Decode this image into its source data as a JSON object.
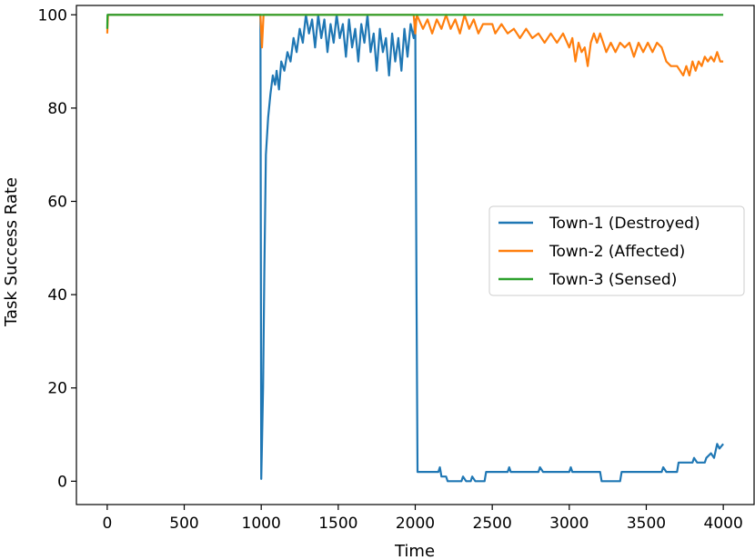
{
  "chart_data": {
    "type": "line",
    "title": "",
    "xlabel": "Time",
    "ylabel": "Task Success Rate",
    "xlim": [
      -200,
      4200
    ],
    "ylim": [
      -5,
      102
    ],
    "xticks": [
      0,
      500,
      1000,
      1500,
      2000,
      2500,
      3000,
      3500,
      4000
    ],
    "yticks": [
      0,
      20,
      40,
      60,
      80,
      100
    ],
    "grid": false,
    "legend_position": "center-right",
    "series": [
      {
        "name": "Town-1 (Destroyed)",
        "color": "#1f77b4",
        "points": [
          [
            0,
            100
          ],
          [
            995,
            100
          ],
          [
            1000,
            0.5
          ],
          [
            1005,
            8
          ],
          [
            1012,
            20
          ],
          [
            1020,
            45
          ],
          [
            1030,
            70
          ],
          [
            1045,
            78
          ],
          [
            1060,
            83
          ],
          [
            1075,
            87
          ],
          [
            1090,
            85
          ],
          [
            1100,
            88
          ],
          [
            1115,
            84
          ],
          [
            1130,
            90
          ],
          [
            1150,
            88
          ],
          [
            1170,
            92
          ],
          [
            1190,
            90
          ],
          [
            1210,
            95
          ],
          [
            1230,
            92
          ],
          [
            1250,
            97
          ],
          [
            1270,
            94
          ],
          [
            1290,
            100
          ],
          [
            1310,
            96
          ],
          [
            1330,
            99
          ],
          [
            1350,
            93
          ],
          [
            1370,
            100
          ],
          [
            1390,
            95
          ],
          [
            1410,
            99
          ],
          [
            1430,
            92
          ],
          [
            1450,
            98
          ],
          [
            1470,
            94
          ],
          [
            1490,
            100
          ],
          [
            1510,
            95
          ],
          [
            1530,
            98
          ],
          [
            1550,
            91
          ],
          [
            1570,
            99
          ],
          [
            1590,
            93
          ],
          [
            1610,
            97
          ],
          [
            1630,
            90
          ],
          [
            1650,
            98
          ],
          [
            1670,
            94
          ],
          [
            1690,
            100
          ],
          [
            1710,
            92
          ],
          [
            1730,
            96
          ],
          [
            1750,
            88
          ],
          [
            1770,
            97
          ],
          [
            1790,
            92
          ],
          [
            1810,
            95
          ],
          [
            1830,
            87
          ],
          [
            1850,
            96
          ],
          [
            1870,
            90
          ],
          [
            1890,
            95
          ],
          [
            1910,
            88
          ],
          [
            1930,
            97
          ],
          [
            1950,
            91
          ],
          [
            1970,
            98
          ],
          [
            1990,
            95
          ],
          [
            2000,
            99
          ],
          [
            2008,
            40
          ],
          [
            2015,
            2
          ],
          [
            2150,
            2
          ],
          [
            2160,
            3
          ],
          [
            2170,
            1
          ],
          [
            2200,
            1
          ],
          [
            2210,
            0
          ],
          [
            2300,
            0
          ],
          [
            2310,
            1
          ],
          [
            2330,
            0
          ],
          [
            2360,
            0
          ],
          [
            2370,
            1
          ],
          [
            2390,
            0
          ],
          [
            2450,
            0
          ],
          [
            2460,
            2
          ],
          [
            2600,
            2
          ],
          [
            2610,
            3
          ],
          [
            2620,
            2
          ],
          [
            2800,
            2
          ],
          [
            2810,
            3
          ],
          [
            2830,
            2
          ],
          [
            3000,
            2
          ],
          [
            3010,
            3
          ],
          [
            3020,
            2
          ],
          [
            3200,
            2
          ],
          [
            3210,
            0
          ],
          [
            3330,
            0
          ],
          [
            3340,
            2
          ],
          [
            3600,
            2
          ],
          [
            3610,
            3
          ],
          [
            3630,
            2
          ],
          [
            3700,
            2
          ],
          [
            3710,
            4
          ],
          [
            3800,
            4
          ],
          [
            3810,
            5
          ],
          [
            3830,
            4
          ],
          [
            3880,
            4
          ],
          [
            3890,
            5
          ],
          [
            3920,
            6
          ],
          [
            3940,
            5
          ],
          [
            3960,
            8
          ],
          [
            3975,
            7
          ],
          [
            4000,
            8
          ]
        ]
      },
      {
        "name": "Town-2 (Affected)",
        "color": "#ff7f0e",
        "points": [
          [
            0,
            96
          ],
          [
            5,
            100
          ],
          [
            995,
            100
          ],
          [
            1005,
            93
          ],
          [
            1015,
            100
          ],
          [
            1990,
            100
          ],
          [
            2000,
            96
          ],
          [
            2010,
            100
          ],
          [
            2050,
            97
          ],
          [
            2080,
            99
          ],
          [
            2110,
            96
          ],
          [
            2140,
            99
          ],
          [
            2170,
            97
          ],
          [
            2200,
            100
          ],
          [
            2230,
            97
          ],
          [
            2260,
            99
          ],
          [
            2290,
            96
          ],
          [
            2320,
            100
          ],
          [
            2350,
            97
          ],
          [
            2380,
            99
          ],
          [
            2410,
            96
          ],
          [
            2440,
            98
          ],
          [
            2500,
            98
          ],
          [
            2520,
            96
          ],
          [
            2560,
            98
          ],
          [
            2600,
            96
          ],
          [
            2640,
            97
          ],
          [
            2680,
            95
          ],
          [
            2720,
            97
          ],
          [
            2760,
            95
          ],
          [
            2800,
            96
          ],
          [
            2840,
            94
          ],
          [
            2880,
            96
          ],
          [
            2920,
            94
          ],
          [
            2960,
            96
          ],
          [
            3000,
            93
          ],
          [
            3020,
            95
          ],
          [
            3040,
            90
          ],
          [
            3060,
            94
          ],
          [
            3080,
            92
          ],
          [
            3100,
            93
          ],
          [
            3120,
            89
          ],
          [
            3140,
            94
          ],
          [
            3160,
            96
          ],
          [
            3180,
            94
          ],
          [
            3200,
            96
          ],
          [
            3220,
            94
          ],
          [
            3240,
            92
          ],
          [
            3270,
            94
          ],
          [
            3300,
            92
          ],
          [
            3330,
            94
          ],
          [
            3360,
            93
          ],
          [
            3390,
            94
          ],
          [
            3420,
            91
          ],
          [
            3450,
            94
          ],
          [
            3480,
            92
          ],
          [
            3510,
            94
          ],
          [
            3540,
            92
          ],
          [
            3570,
            94
          ],
          [
            3600,
            93
          ],
          [
            3630,
            90
          ],
          [
            3660,
            89
          ],
          [
            3700,
            89
          ],
          [
            3720,
            88
          ],
          [
            3740,
            87
          ],
          [
            3760,
            89
          ],
          [
            3780,
            87
          ],
          [
            3800,
            90
          ],
          [
            3820,
            88
          ],
          [
            3840,
            90
          ],
          [
            3860,
            89
          ],
          [
            3880,
            91
          ],
          [
            3900,
            90
          ],
          [
            3920,
            91
          ],
          [
            3940,
            90
          ],
          [
            3960,
            92
          ],
          [
            3980,
            90
          ],
          [
            4000,
            90
          ]
        ]
      },
      {
        "name": "Town-3 (Sensed)",
        "color": "#2ca02c",
        "points": [
          [
            0,
            97
          ],
          [
            2,
            100
          ],
          [
            4000,
            100
          ]
        ]
      }
    ]
  }
}
